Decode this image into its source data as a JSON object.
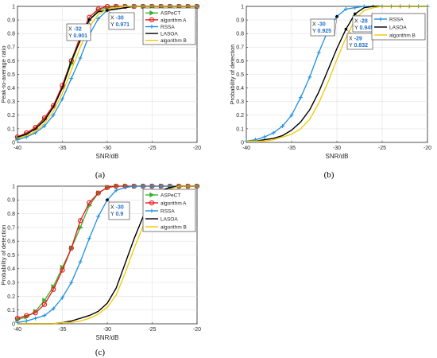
{
  "figure": {
    "captions": [
      "(a)",
      "(b)",
      "(c)"
    ]
  },
  "chart_data": [
    {
      "type": "line",
      "xlabel": "SNR/dB",
      "ylabel": "Peak-to-average ratio",
      "xlim": [
        -40,
        -20
      ],
      "ylim": [
        0,
        1
      ],
      "xticks": [
        -40,
        -35,
        -30,
        -25,
        -20
      ],
      "xtick_labels": [
        "-40",
        "-35",
        "-30",
        "-25",
        "-20"
      ],
      "yticks": [
        0,
        0.1,
        0.2,
        0.3,
        0.4,
        0.5,
        0.6,
        0.7,
        0.8,
        0.9,
        1
      ],
      "ytick_labels": [
        "0",
        "0.1",
        "0.2",
        "0.3",
        "0.4",
        "0.5",
        "0.6",
        "0.7",
        "0.8",
        "0.9",
        "1"
      ],
      "grid": true,
      "legend_position": "top-right",
      "x": [
        -40,
        -39,
        -38,
        -37,
        -36,
        -35,
        -34,
        -33,
        -32,
        -31,
        -30,
        -29,
        -28,
        -27,
        -26,
        -25,
        -24,
        -23,
        -22,
        -21,
        -20
      ],
      "series": [
        {
          "name": "ASPeCT",
          "color": "#3cb030",
          "marker": "triangle-right",
          "values": [
            0.03,
            0.06,
            0.1,
            0.17,
            0.26,
            0.4,
            0.58,
            0.76,
            0.9,
            0.97,
            0.99,
            1,
            1,
            1,
            1,
            1,
            1,
            1,
            1,
            1,
            1
          ]
        },
        {
          "name": "algorithm A",
          "color": "#e8161a",
          "marker": "circle",
          "values": [
            0.04,
            0.07,
            0.11,
            0.18,
            0.27,
            0.42,
            0.6,
            0.78,
            0.92,
            0.98,
            1,
            1,
            1,
            1,
            1,
            1,
            1,
            1,
            1,
            1,
            1
          ]
        },
        {
          "name": "RSSA",
          "color": "#1f8fe0",
          "marker": "plus",
          "values": [
            0.02,
            0.04,
            0.07,
            0.12,
            0.2,
            0.32,
            0.47,
            0.62,
            0.79,
            0.91,
            0.97,
            0.99,
            1,
            1,
            1,
            1,
            1,
            1,
            1,
            1,
            1
          ]
        },
        {
          "name": "LASOA",
          "color": "#000000",
          "marker": "none",
          "values": [
            0.04,
            0.06,
            0.1,
            0.16,
            0.26,
            0.4,
            0.6,
            0.75,
            0.901,
            0.96,
            0.971,
            0.98,
            0.99,
            1,
            1,
            1,
            1,
            1,
            1,
            1,
            1
          ]
        },
        {
          "name": "algorithm B",
          "color": "#f0c800",
          "marker": "none",
          "values": [
            0.03,
            0.05,
            0.08,
            0.14,
            0.23,
            0.36,
            0.53,
            0.7,
            0.85,
            0.94,
            0.98,
            0.99,
            1,
            1,
            1,
            1,
            1,
            1,
            1,
            1,
            1
          ]
        }
      ],
      "annotations": [
        {
          "x_text": "X",
          "x_value": "-32",
          "y_text": "Y",
          "y_value": "0.901",
          "point": [
            -32,
            0.901
          ]
        },
        {
          "x_text": "X",
          "x_value": "-30",
          "y_text": "Y",
          "y_value": "0.971",
          "point": [
            -30,
            0.971
          ]
        }
      ]
    },
    {
      "type": "line",
      "xlabel": "SNR/dB",
      "ylabel": "Probability of detection",
      "xlim": [
        -40,
        -20
      ],
      "ylim": [
        0,
        1
      ],
      "xticks": [
        -40,
        -35,
        -30,
        -25,
        -20
      ],
      "xtick_labels": [
        "-40",
        "-35",
        "-30",
        "-25",
        "-20"
      ],
      "yticks": [
        0,
        0.1,
        0.2,
        0.3,
        0.4,
        0.5,
        0.6,
        0.7,
        0.8,
        0.9,
        1
      ],
      "ytick_labels": [
        "0",
        "0.1",
        "0.2",
        "0.3",
        "0.4",
        "0.5",
        "0.6",
        "0.7",
        "0.8",
        "0.9",
        "1"
      ],
      "grid": true,
      "legend_position": "top-right",
      "x": [
        -40,
        -39,
        -38,
        -37,
        -36,
        -35,
        -34,
        -33,
        -32,
        -31,
        -30,
        -29,
        -28,
        -27,
        -26,
        -25,
        -24,
        -23,
        -22,
        -21,
        -20
      ],
      "series": [
        {
          "name": "RSSA",
          "color": "#1f8fe0",
          "marker": "plus",
          "values": [
            0.01,
            0.02,
            0.04,
            0.07,
            0.12,
            0.2,
            0.33,
            0.48,
            0.66,
            0.82,
            0.925,
            0.98,
            0.99,
            1,
            1,
            1,
            1,
            1,
            1,
            1,
            1
          ]
        },
        {
          "name": "LASOA",
          "color": "#000000",
          "marker": "none",
          "values": [
            0.01,
            0.01,
            0.02,
            0.03,
            0.05,
            0.09,
            0.15,
            0.24,
            0.37,
            0.53,
            0.69,
            0.832,
            0.945,
            0.99,
            1,
            1,
            1,
            1,
            1,
            1,
            1
          ]
        },
        {
          "name": "algorithm B",
          "color": "#f0c800",
          "marker": "none",
          "values": [
            0.01,
            0.01,
            0.01,
            0.02,
            0.04,
            0.06,
            0.1,
            0.17,
            0.29,
            0.44,
            0.61,
            0.77,
            0.9,
            0.97,
            0.99,
            1,
            1,
            1,
            1,
            1,
            1
          ]
        }
      ],
      "annotations": [
        {
          "x_text": "X",
          "x_value": "-30",
          "y_text": "Y",
          "y_value": "0.925",
          "point": [
            -30,
            0.925
          ]
        },
        {
          "x_text": "X",
          "x_value": "-28",
          "y_text": "Y",
          "y_value": "0.945",
          "point": [
            -28,
            0.945
          ]
        },
        {
          "x_text": "X",
          "x_value": "-29",
          "y_text": "Y",
          "y_value": "0.832",
          "point": [
            -29,
            0.832
          ]
        }
      ]
    },
    {
      "type": "line",
      "xlabel": "SNR/dB",
      "ylabel": "Probability of detection",
      "xlim": [
        -40,
        -20
      ],
      "ylim": [
        0,
        1
      ],
      "xticks": [
        -40,
        -35,
        -30,
        -25,
        -20
      ],
      "xtick_labels": [
        "-40",
        "-35",
        "-30",
        "-25",
        "-20"
      ],
      "yticks": [
        0,
        0.1,
        0.2,
        0.3,
        0.4,
        0.5,
        0.6,
        0.7,
        0.8,
        0.9,
        1
      ],
      "ytick_labels": [
        "0",
        "0.1",
        "0.2",
        "0.3",
        "0.4",
        "0.5",
        "0.6",
        "0.7",
        "0.8",
        "0.9",
        "1"
      ],
      "grid": true,
      "legend_position": "top-right",
      "x": [
        -40,
        -39,
        -38,
        -37,
        -36,
        -35,
        -34,
        -33,
        -32,
        -31,
        -30,
        -29,
        -28,
        -27,
        -26,
        -25,
        -24,
        -23,
        -22,
        -21,
        -20
      ],
      "series": [
        {
          "name": "ASPeCT",
          "color": "#3cb030",
          "marker": "triangle-right",
          "values": [
            0.03,
            0.05,
            0.09,
            0.17,
            0.27,
            0.41,
            0.55,
            0.7,
            0.86,
            0.95,
            0.99,
            1,
            1,
            1,
            1,
            1,
            1,
            1,
            1,
            1,
            1
          ]
        },
        {
          "name": "algorithm A",
          "color": "#e8161a",
          "marker": "circle",
          "values": [
            0.04,
            0.06,
            0.08,
            0.14,
            0.25,
            0.39,
            0.55,
            0.75,
            0.88,
            0.95,
            0.99,
            1,
            1,
            1,
            1,
            1,
            1,
            1,
            1,
            1,
            1
          ]
        },
        {
          "name": "RSSA",
          "color": "#1f8fe0",
          "marker": "plus",
          "values": [
            0.01,
            0.02,
            0.04,
            0.06,
            0.11,
            0.19,
            0.3,
            0.45,
            0.62,
            0.78,
            0.9,
            0.97,
            0.99,
            1,
            1,
            1,
            1,
            1,
            1,
            1,
            1
          ]
        },
        {
          "name": "LASOA",
          "color": "#000000",
          "marker": "none",
          "values": [
            0,
            0,
            0,
            0,
            0,
            0.01,
            0.02,
            0.04,
            0.06,
            0.09,
            0.15,
            0.26,
            0.44,
            0.62,
            0.78,
            0.9,
            0.97,
            0.99,
            1,
            1,
            1
          ]
        },
        {
          "name": "algorithm B",
          "color": "#f0c800",
          "marker": "none",
          "values": [
            0,
            0,
            0,
            0,
            0,
            0.01,
            0.01,
            0.02,
            0.04,
            0.07,
            0.12,
            0.21,
            0.37,
            0.55,
            0.71,
            0.85,
            0.94,
            0.98,
            1,
            1,
            1
          ]
        }
      ],
      "annotations": [
        {
          "x_text": "X",
          "x_value": "-30",
          "y_text": "Y",
          "y_value": "0.9",
          "point": [
            -30,
            0.9
          ]
        }
      ]
    }
  ]
}
